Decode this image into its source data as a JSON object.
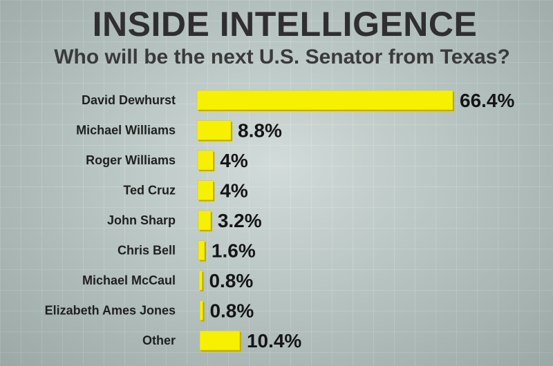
{
  "chart_data": {
    "type": "bar",
    "orientation": "horizontal",
    "title": "INSIDE INTELLIGENCE",
    "subtitle": "Who will be the next U.S. Senator from Texas?",
    "categories": [
      "David Dewhurst",
      "Michael Williams",
      "Roger Williams",
      "Ted Cruz",
      "John Sharp",
      "Chris Bell",
      "Michael McCaul",
      "Elizabeth Ames Jones",
      "Other"
    ],
    "values": [
      66.4,
      8.8,
      4,
      4,
      3.2,
      1.6,
      0.8,
      0.8,
      10.4
    ],
    "value_labels": [
      "66.4%",
      "8.8%",
      "4%",
      "4%",
      "3.2%",
      "1.6%",
      "0.8%",
      "0.8%",
      "10.4%"
    ],
    "xlabel": "",
    "ylabel": "",
    "xlim": [
      0,
      66.4
    ],
    "grid": true,
    "legend": "none",
    "bar_color": "#f7f000",
    "bar_shadow_color": "#b8a800"
  }
}
